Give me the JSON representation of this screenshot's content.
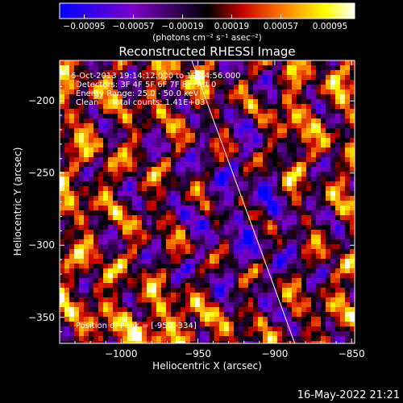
{
  "chart_data": {
    "type": "heatmap",
    "title": "Reconstructed RHESSI Image",
    "xlabel": "Heliocentric X (arcsec)",
    "ylabel": "Heliocentric Y (arcsec)",
    "xlim": [
      -1040,
      -848
    ],
    "ylim": [
      -368,
      -172
    ],
    "xticks": [
      -1000,
      -950,
      -900,
      -850
    ],
    "xtick_labels": [
      "−1000",
      "−950",
      "−900",
      "−850"
    ],
    "yticks": [
      -350,
      -300,
      -250,
      -200
    ],
    "ytick_labels": [
      "−350",
      "−300",
      "−250",
      "−200"
    ],
    "colorbar": {
      "range": [
        -0.00095,
        0.00095
      ],
      "ticks": [
        "−0.00095",
        "−0.00057",
        "−0.00019",
        "0.00019",
        "0.00057",
        "0.00095"
      ],
      "units": "(photons cm⁻² s⁻¹ asec⁻²)"
    },
    "annotations": [
      "6-Oct-2013 19:14:12.000 to 19:14:56.000",
      "Detectors: 3F 4F 5F 6F 7F 8F, Att 0",
      "Energy Range: 25.0 - 50.0 keV",
      "Clean     Total counts: 1.41E+03",
      "Position of Peak = [-950,-334]"
    ],
    "limb_line": {
      "x": [
        -954,
        -887
      ],
      "y": [
        -172,
        -368
      ]
    },
    "peak": [
      -950,
      -334
    ],
    "grid": false
  },
  "footer": {
    "timestamp": "16-May-2022 21:21"
  },
  "colors": {
    "background": "#000000",
    "colormap": [
      "#0000ff",
      "#7b00c8",
      "#000000",
      "#c80000",
      "#ff8000",
      "#ffff00",
      "#ffffff"
    ]
  }
}
